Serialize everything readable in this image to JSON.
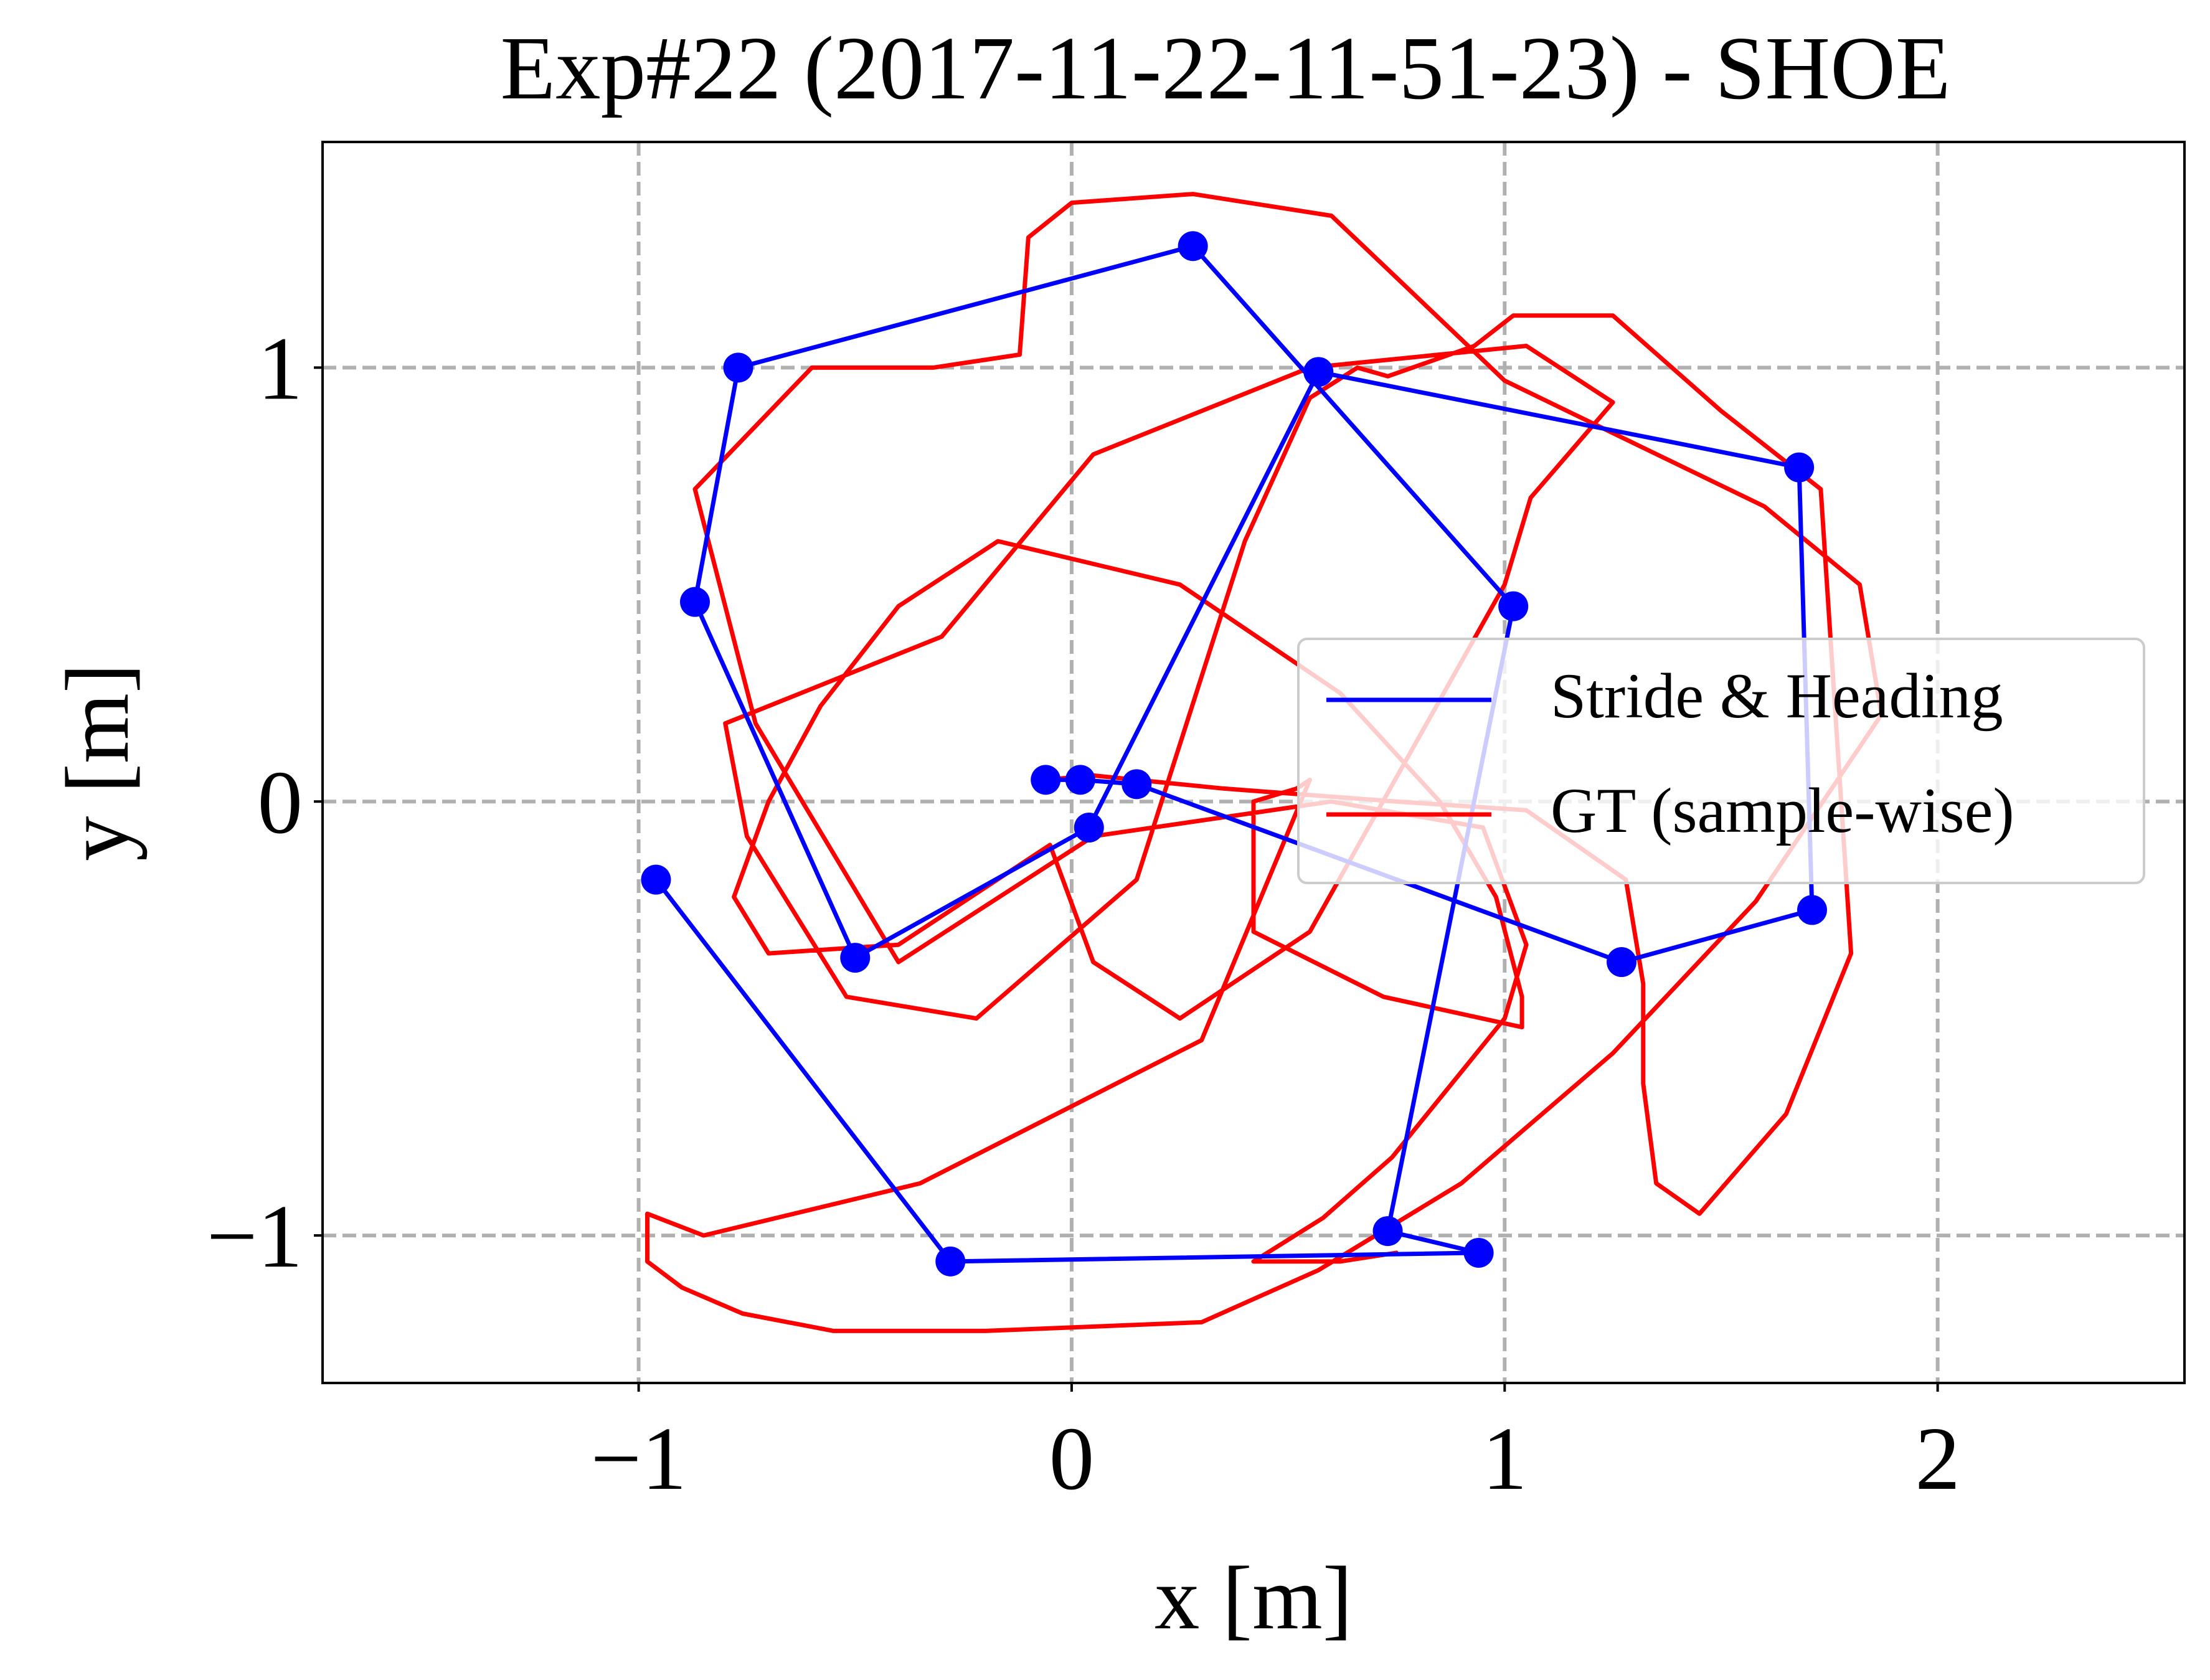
{
  "chart_data": {
    "type": "line",
    "title": "Exp#22 (2017-11-22-11-51-23) - SHOE",
    "xlabel": "x [m]",
    "ylabel": "y [m]",
    "xlim": [
      -1.73,
      2.57
    ],
    "ylim": [
      -1.34,
      1.52
    ],
    "xticks": [
      -1,
      0,
      1,
      2
    ],
    "yticks": [
      -1,
      0,
      1
    ],
    "xtick_labels": [
      "−1",
      "0",
      "1",
      "2"
    ],
    "ytick_labels": [
      "−1",
      "0",
      "1"
    ],
    "grid": true,
    "legend_position": "center-right",
    "series": [
      {
        "name": "Stride & Heading",
        "color": "#0000ff",
        "markers": true,
        "x": [
          -0.06,
          0.02,
          0.15,
          1.27,
          1.71,
          1.68,
          0.57,
          0.04,
          -0.5,
          -0.87,
          -0.77,
          0.28,
          1.02,
          0.73,
          0.94,
          -0.28,
          -0.96
        ],
        "y": [
          0.05,
          0.05,
          0.04,
          -0.37,
          -0.25,
          0.77,
          0.99,
          -0.06,
          -0.36,
          0.46,
          1.0,
          1.28,
          0.45,
          -0.99,
          -1.04,
          -1.06,
          -0.18
        ]
      },
      {
        "name": "GT (sample-wise)",
        "color": "#ff0000",
        "markers": false,
        "x": [
          -0.06,
          0.05,
          0.35,
          0.75,
          1.05,
          1.28,
          1.32,
          1.32,
          1.35,
          1.45,
          1.65,
          1.8,
          1.73,
          1.5,
          1.25,
          1.02,
          0.93,
          0.73,
          0.66,
          0.55,
          0.4,
          0.15,
          -0.22,
          -0.52,
          -0.75,
          -0.8,
          -0.65,
          -0.3,
          0.05,
          0.55,
          1.05,
          1.25,
          1.06,
          1.0,
          0.55,
          0.25,
          0.05,
          -0.05,
          -0.4,
          -0.7,
          -0.78,
          -0.7,
          -0.58,
          -0.4,
          -0.17,
          0.25,
          0.62,
          0.85,
          0.98,
          1.04,
          1.04,
          0.72,
          0.42,
          0.42,
          0.52,
          0.55,
          0.3,
          -0.35,
          -0.85,
          -0.98,
          -0.98,
          -0.9,
          -0.76,
          -0.55,
          -0.2,
          0.3,
          0.57,
          0.9,
          1.25,
          1.58,
          1.87,
          1.82,
          1.6,
          1.0,
          0.6,
          0.28,
          0.0,
          -0.1,
          -0.12,
          -0.32,
          -0.6,
          -0.87,
          -0.73,
          -0.4,
          0.05,
          0.6,
          0.95,
          1.05,
          1.0,
          0.74,
          0.58,
          0.42,
          0.62,
          0.75
        ],
        "y": [
          0.05,
          0.06,
          0.03,
          0.0,
          -0.02,
          -0.18,
          -0.42,
          -0.65,
          -0.88,
          -0.95,
          -0.72,
          -0.35,
          0.72,
          0.9,
          1.12,
          1.12,
          1.05,
          0.98,
          1.0,
          0.93,
          0.6,
          -0.18,
          -0.5,
          -0.45,
          -0.08,
          0.18,
          0.24,
          0.38,
          0.8,
          1.0,
          1.05,
          0.92,
          0.7,
          0.5,
          -0.3,
          -0.5,
          -0.37,
          -0.1,
          -0.33,
          -0.35,
          -0.22,
          0.0,
          0.22,
          0.45,
          0.6,
          0.5,
          0.25,
          0.0,
          -0.22,
          -0.45,
          -0.52,
          -0.45,
          -0.3,
          0.0,
          0.03,
          0.05,
          -0.55,
          -0.88,
          -1.0,
          -0.95,
          -1.06,
          -1.12,
          -1.18,
          -1.22,
          -1.22,
          -1.2,
          -1.08,
          -0.88,
          -0.58,
          -0.23,
          0.2,
          0.5,
          0.68,
          0.97,
          1.35,
          1.4,
          1.38,
          1.3,
          1.03,
          1.0,
          1.0,
          0.72,
          0.18,
          -0.37,
          -0.08,
          0.0,
          -0.06,
          -0.33,
          -0.5,
          -0.82,
          -0.96,
          -1.06,
          -1.06,
          -1.04
        ]
      }
    ]
  }
}
